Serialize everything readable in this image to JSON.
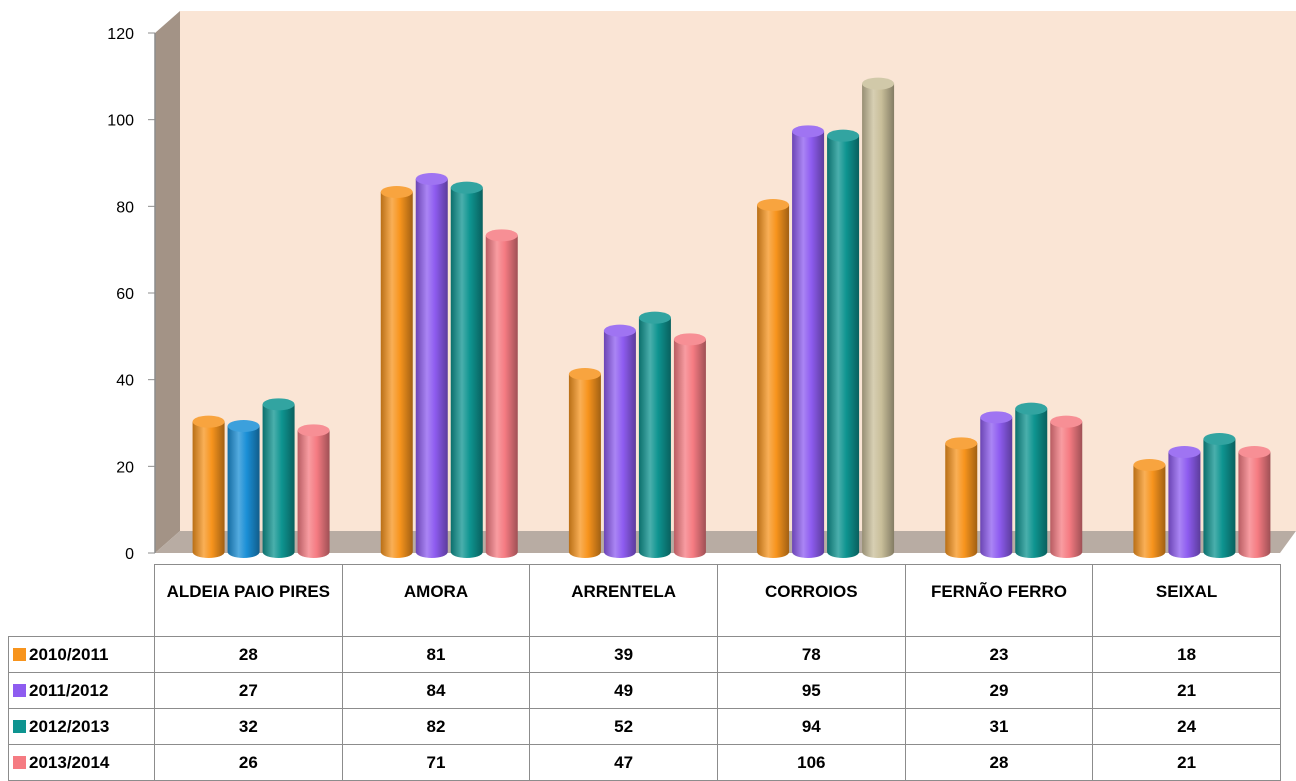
{
  "chart_data": {
    "type": "bar",
    "title": "",
    "xlabel": "",
    "ylabel": "",
    "ylim": [
      0,
      120
    ],
    "yticks": [
      0,
      20,
      40,
      60,
      80,
      100,
      120
    ],
    "grid": false,
    "legend": "data table below chart",
    "categories": [
      "ALDEIA PAIO PIRES",
      "AMORA",
      "ARRENTELA",
      "CORROIOS",
      "FERNÃO FERRO",
      "SEIXAL"
    ],
    "series": [
      {
        "name": "2010/2011",
        "color": "#f7941d",
        "values": [
          28,
          81,
          39,
          78,
          23,
          18
        ]
      },
      {
        "name": "2011/2012",
        "color": "#8e5cf0",
        "values": [
          27,
          84,
          49,
          95,
          29,
          21
        ]
      },
      {
        "name": "2012/2013",
        "color": "#0e9490",
        "values": [
          32,
          82,
          52,
          94,
          31,
          24
        ]
      },
      {
        "name": "2013/2014",
        "color": "#f57b82",
        "values": [
          26,
          71,
          47,
          106,
          28,
          21
        ]
      }
    ],
    "bar_color_overrides": [
      {
        "category": "ALDEIA PAIO PIRES",
        "series": "2011/2012",
        "color": "#1a8fd6"
      },
      {
        "category": "CORROIOS",
        "series": "2013/2014",
        "color": "#c9bf9a"
      }
    ],
    "colors": {
      "plot_background": "#fae5d5",
      "wall_side": "#a39386",
      "floor": "#b8aca3"
    }
  }
}
